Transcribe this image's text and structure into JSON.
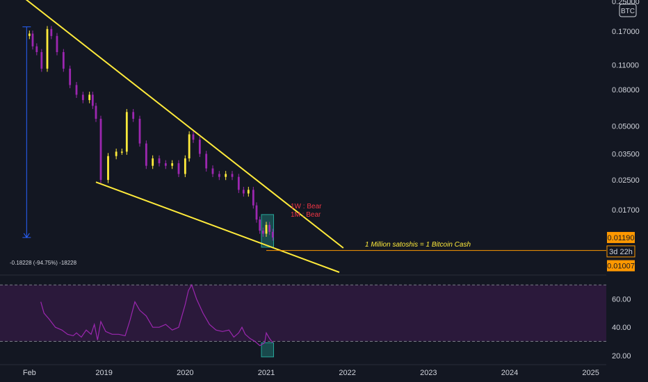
{
  "chart_data": [
    {
      "type": "candlestick",
      "instrument": {
        "quote_currency": "BTC"
      },
      "yscale": "log",
      "ylim": [
        0.0076,
        0.25
      ],
      "x_tick_labels": [
        "Feb",
        "2019",
        "2020",
        "2021",
        "2022",
        "2023",
        "2024",
        "2025"
      ],
      "y_tick_labels": [
        {
          "value": 0.25,
          "label": "0.25000"
        },
        {
          "value": 0.17,
          "label": "0.17000"
        },
        {
          "value": 0.11,
          "label": "0.11000"
        },
        {
          "value": 0.08,
          "label": "0.08000"
        },
        {
          "value": 0.05,
          "label": "0.05000"
        },
        {
          "value": 0.035,
          "label": "0.03500"
        },
        {
          "value": 0.025,
          "label": "0.02500"
        },
        {
          "value": 0.017,
          "label": "0.01700"
        }
      ],
      "price_badges": [
        {
          "value": 0.0119,
          "label": "0.01190",
          "color": "#ff9800"
        },
        {
          "label": "3d 22h",
          "color": "#ff9800"
        },
        {
          "value": 0.01007,
          "label": "0.01007",
          "color": "#ff9800"
        }
      ],
      "series": [
        {
          "time": [
            2018.08,
            2018.12,
            2018.17,
            2018.23,
            2018.3,
            2018.35,
            2018.42,
            2018.5,
            2018.58,
            2018.66,
            2018.74,
            2018.82,
            2018.86,
            2018.9,
            2018.96,
            2019.05,
            2019.15,
            2019.22,
            2019.28,
            2019.36,
            2019.44,
            2019.52,
            2019.6,
            2019.68,
            2019.76,
            2019.84,
            2019.92,
            2020.0,
            2020.05,
            2020.1,
            2020.18,
            2020.26,
            2020.34,
            2020.42,
            2020.5,
            2020.58,
            2020.66,
            2020.72,
            2020.78,
            2020.84,
            2020.88,
            2020.92,
            2020.96,
            2021.0,
            2021.04,
            2021.08
          ],
          "close": [
            0.165,
            0.14,
            0.13,
            0.105,
            0.175,
            0.16,
            0.13,
            0.105,
            0.085,
            0.075,
            0.07,
            0.075,
            0.065,
            0.055,
            0.025,
            0.034,
            0.036,
            0.036,
            0.06,
            0.055,
            0.04,
            0.03,
            0.033,
            0.031,
            0.03,
            0.031,
            0.027,
            0.033,
            0.045,
            0.042,
            0.035,
            0.029,
            0.027,
            0.026,
            0.027,
            0.026,
            0.022,
            0.021,
            0.022,
            0.018,
            0.015,
            0.013,
            0.0125,
            0.014,
            0.0128,
            0.0119
          ]
        },
        {
          "type": "line",
          "time": [
            2018.22,
            2018.26,
            2018.32,
            2018.4,
            2018.48,
            2018.55,
            2018.62,
            2018.66,
            2018.72,
            2018.78,
            2018.84,
            2018.88,
            2018.92,
            2018.96,
            2019.02,
            2019.1,
            2019.18,
            2019.26,
            2019.32,
            2019.38,
            2019.44,
            2019.52,
            2019.6,
            2019.68,
            2019.76,
            2019.84,
            2019.92,
            2020.0,
            2020.04,
            2020.08,
            2020.14,
            2020.22,
            2020.3,
            2020.38,
            2020.46,
            2020.54,
            2020.6,
            2020.66,
            2020.7,
            2020.74,
            2020.8,
            2020.86,
            2020.92,
            2020.98,
            2021.0,
            2021.04,
            2021.08
          ],
          "value": [
            58,
            50,
            46,
            40,
            38,
            35,
            34,
            36,
            33,
            38,
            35,
            42,
            31,
            44,
            37,
            35,
            35,
            34,
            45,
            58,
            52,
            48,
            40,
            40,
            42,
            38,
            40,
            56,
            66,
            70,
            60,
            50,
            42,
            38,
            37,
            38,
            33,
            36,
            40,
            35,
            32,
            30,
            27,
            29,
            36,
            32,
            29
          ]
        }
      ],
      "annotations": [
        {
          "text": "1W : Bear",
          "color": "#f23645"
        },
        {
          "text": "1M : Bear",
          "color": "#f23645"
        },
        {
          "text": "1 Million satoshis = 1 Bitcoin Cash",
          "color": "#ffeb3b"
        },
        {
          "text": "-0.18228 (-94.75%) -18228",
          "color": "#d1d4dc"
        }
      ],
      "trendlines": [
        {
          "from": {
            "x": 2018.02,
            "y": 0.26
          },
          "to": {
            "x": 2021.95,
            "y": 0.0104
          }
        },
        {
          "from": {
            "x": 2018.9,
            "y": 0.0243
          },
          "to": {
            "x": 2021.9,
            "y": 0.0076
          }
        }
      ]
    },
    {
      "type": "line",
      "ylim": [
        15,
        76
      ],
      "y_tick_labels": [
        {
          "value": 60,
          "label": "60.00"
        },
        {
          "value": 40,
          "label": "40.00"
        },
        {
          "value": 20,
          "label": "20.00"
        }
      ],
      "bands": [
        70,
        30
      ],
      "xlim": [
        2018.0,
        2025.2
      ]
    }
  ],
  "colors": {
    "background": "#131722",
    "up": "#ffeb3b",
    "down": "#9c27b0",
    "trend": "#ffeb3b",
    "measure": "#2962ff",
    "rsi": "#9c27b0",
    "accent": "#ff9800",
    "highlight": "#26a69a"
  }
}
